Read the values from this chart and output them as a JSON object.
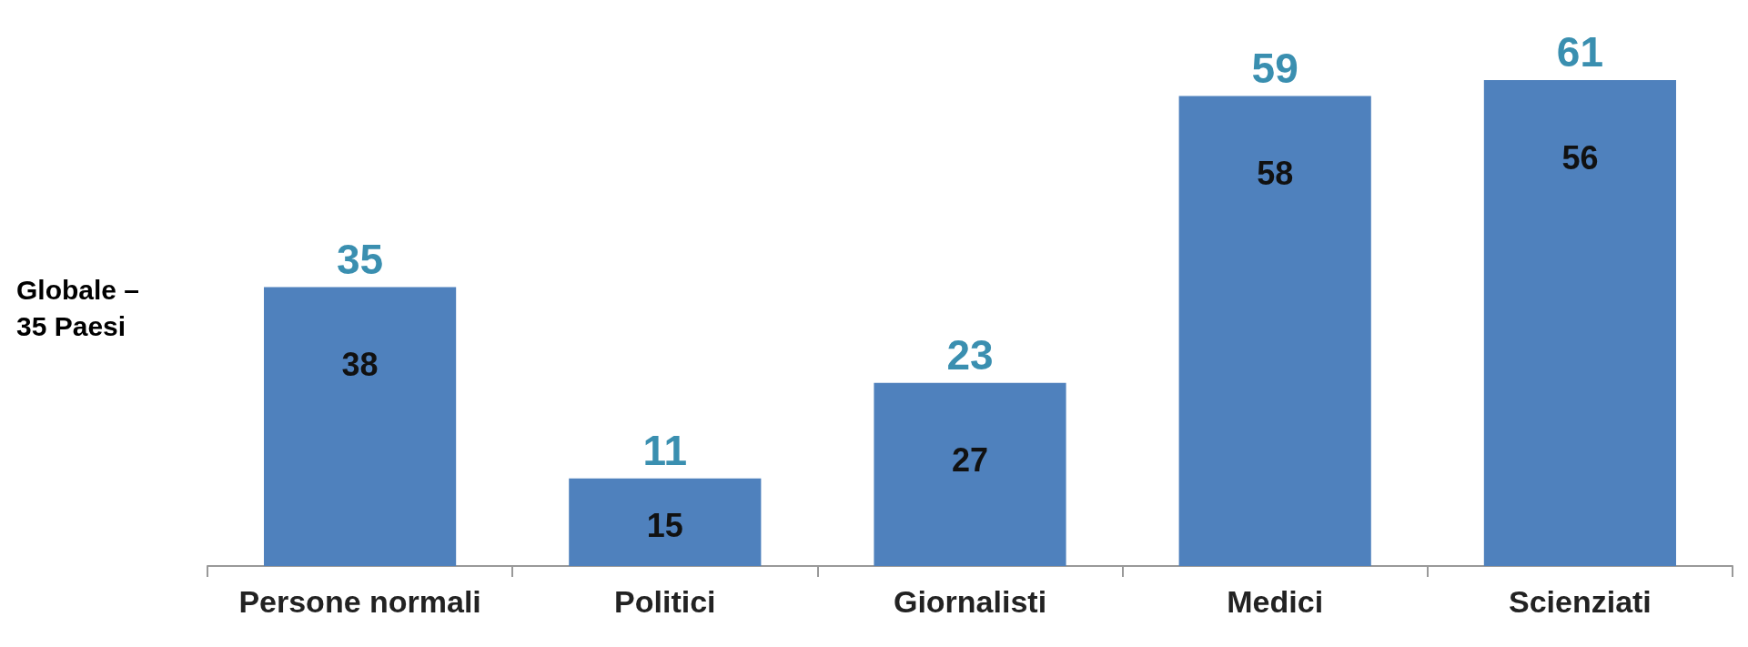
{
  "chart_data": {
    "type": "bar",
    "ylabel": "Globale –\n35 Paesi",
    "categories": [
      "Persone normali",
      "Politici",
      "Giornalisti",
      "Medici",
      "Scienziati"
    ],
    "values": [
      35,
      11,
      23,
      59,
      61
    ],
    "color": "#4f81bd",
    "data_labels": true,
    "annotations": [
      "38",
      "15",
      "27",
      "58",
      "56"
    ]
  }
}
